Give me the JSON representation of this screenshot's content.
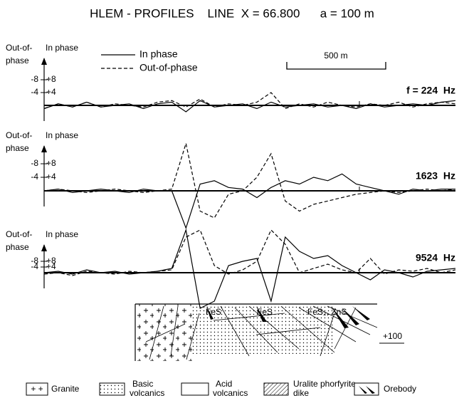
{
  "title": "HLEM - PROFILES    LINE  X = 66.800      a = 100 m",
  "scale_bar": "500 m",
  "chart_data": [
    {
      "type": "line",
      "title": "f = 224  Hz",
      "ylabel": "In phase",
      "y2label": [
        "Out-of-",
        "phase"
      ],
      "legend": true,
      "categories": [
        null,
        null,
        null,
        null,
        null,
        null,
        null,
        null,
        null,
        null,
        null,
        null,
        null,
        null,
        null,
        null,
        null,
        null,
        null,
        null,
        null,
        null,
        null,
        null,
        null,
        null,
        null,
        null,
        null,
        null
      ],
      "ylim": [
        -6,
        12
      ],
      "yticks": [
        {
          "value": 4,
          "label": "+4"
        },
        {
          "value": 8,
          "label": "+8"
        }
      ],
      "y2lim": [
        6,
        -12
      ],
      "y2ticks": [
        -4,
        -8
      ],
      "series": [
        {
          "name": "In phase",
          "color": "#000000",
          "dash": false,
          "values": [
            -1,
            0.5,
            -0.5,
            1,
            -0.5,
            0,
            0.5,
            -1,
            0.5,
            1,
            -2,
            1.5,
            -0.5,
            0,
            0.5,
            -1,
            1,
            -0.5,
            0,
            0.5,
            -0.5,
            0,
            -1,
            0.5,
            -0.5,
            0,
            0.5,
            0,
            1,
            1.5
          ]
        },
        {
          "name": "Out-of-phase",
          "color": "#000000",
          "dash": true,
          "axis": "y2",
          "values": [
            1,
            -0.5,
            0.5,
            -1,
            0.5,
            -0.5,
            0,
            0.5,
            -1,
            -1.5,
            0.5,
            -2,
            0.5,
            -0.5,
            0,
            -1,
            -4,
            1,
            -0.5,
            0.5,
            -1,
            0,
            0.5,
            -0.5,
            0,
            -1,
            0.5,
            -0.5,
            -1,
            -0.5
          ]
        }
      ]
    },
    {
      "type": "line",
      "title": "1623  Hz",
      "ylabel": "In phase",
      "y2label": [
        "Out-of-",
        "phase"
      ],
      "legend": false,
      "categories": [
        null,
        null,
        null,
        null,
        null,
        null,
        null,
        null,
        null,
        null,
        null,
        null,
        null,
        null,
        null,
        null,
        null,
        null,
        null,
        null,
        null,
        null,
        null,
        null,
        null,
        null,
        null,
        null,
        null,
        null
      ],
      "ylim": [
        -12,
        16
      ],
      "yticks": [
        {
          "value": 4,
          "label": "+4"
        },
        {
          "value": 8,
          "label": "+8"
        }
      ],
      "y2lim": [
        12,
        -16
      ],
      "y2ticks": [
        -4,
        -8
      ],
      "series": [
        {
          "name": "In phase",
          "color": "#000000",
          "dash": false,
          "values": [
            0,
            0.5,
            -0.5,
            0,
            0.5,
            0,
            -0.5,
            0.5,
            0,
            0,
            -11,
            2,
            3,
            1,
            0.5,
            -2,
            1,
            3,
            2,
            4,
            3,
            5,
            2,
            1,
            0,
            -1,
            0.5,
            0,
            0.5,
            0.5
          ]
        },
        {
          "name": "Out-of-phase",
          "color": "#000000",
          "dash": true,
          "axis": "y2",
          "values": [
            0,
            -0.5,
            0,
            0.5,
            0,
            -0.5,
            0,
            0.5,
            0,
            -0.5,
            -14,
            6,
            8,
            1,
            0,
            -4,
            -11,
            3,
            6,
            4,
            3,
            2,
            1,
            0.5,
            0,
            0.5,
            0,
            -0.5,
            0,
            -0.5
          ]
        }
      ]
    },
    {
      "type": "line",
      "title": "9524  Hz",
      "ylabel": "In phase",
      "y2label": [
        "Out-of-",
        "phase"
      ],
      "legend": false,
      "categories": [
        null,
        null,
        null,
        null,
        null,
        null,
        null,
        null,
        null,
        null,
        null,
        null,
        null,
        null,
        null,
        null,
        null,
        null,
        null,
        null,
        null,
        null,
        null,
        null,
        null,
        null,
        null,
        null,
        null,
        null
      ],
      "ylim": [
        -24,
        36
      ],
      "yticks": [
        {
          "value": 4,
          "label": "+4"
        },
        {
          "value": 8,
          "label": "+8"
        }
      ],
      "y2lim": [
        24,
        -36
      ],
      "y2ticks": [
        -4,
        -8
      ],
      "series": [
        {
          "name": "In phase",
          "color": "#000000",
          "dash": false,
          "values": [
            0,
            1,
            -1,
            2,
            0,
            1,
            -1,
            0,
            1,
            3,
            30,
            -25,
            -20,
            5,
            8,
            10,
            -20,
            25,
            15,
            10,
            12,
            5,
            0,
            -5,
            2,
            0,
            -3,
            1,
            2,
            3
          ]
        },
        {
          "name": "Out-of-phase",
          "color": "#000000",
          "dash": true,
          "axis": "y2",
          "values": [
            1,
            0,
            2,
            -1,
            0,
            1,
            -1,
            0,
            -1,
            -2,
            -25,
            -30,
            -5,
            1,
            -2,
            -8,
            -30,
            -20,
            0,
            -3,
            -6,
            -2,
            0,
            -10,
            1,
            -2,
            -1,
            -3,
            0,
            -2
          ]
        }
      ]
    }
  ],
  "section_labels": [
    "FeS",
    "FeS",
    "FeS₂, ZnS",
    "+100"
  ],
  "legend_items": [
    {
      "symbol": "+ +",
      "lines": [
        "Granite"
      ]
    },
    {
      "lines": [
        "Basic",
        "volcanics"
      ]
    },
    {
      "lines": [
        "Acid",
        "volcanics"
      ]
    },
    {
      "lines": [
        "Uralite phorfyrite",
        "dike"
      ]
    },
    {
      "lines": [
        "Orebody"
      ]
    }
  ]
}
